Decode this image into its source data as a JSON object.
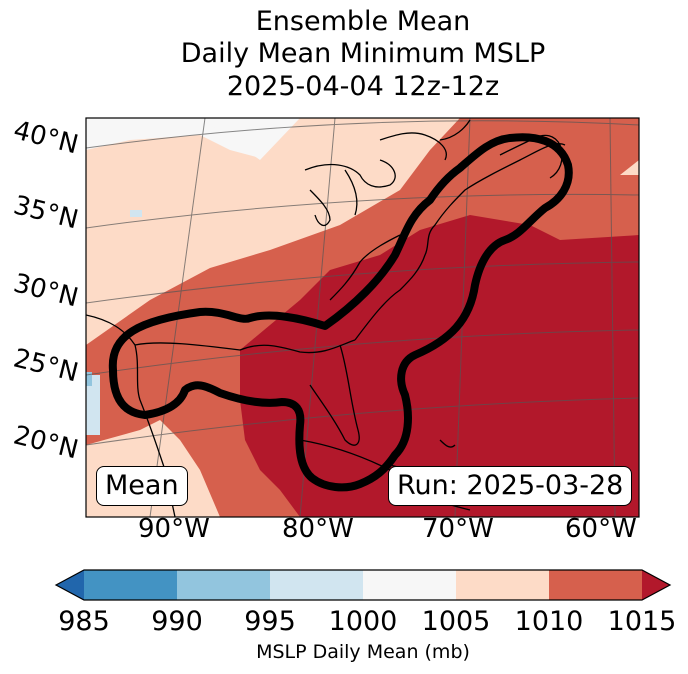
{
  "title": {
    "line1": "Ensemble Mean",
    "line2": "Daily Mean Minimum MSLP",
    "line3": "2025-04-04 12z-12z"
  },
  "map": {
    "lat_labels": [
      "40°N",
      "35°N",
      "30°N",
      "25°N",
      "20°N"
    ],
    "lon_labels": [
      "90°W",
      "80°W",
      "70°W",
      "60°W"
    ],
    "mean_box": "Mean",
    "run_box": "Run: 2025-03-28"
  },
  "colorbar": {
    "ticks": [
      "985",
      "990",
      "995",
      "1000",
      "1005",
      "1010",
      "1015"
    ],
    "label": "MSLP Daily Mean (mb)",
    "colors": [
      "#2166ac",
      "#4393c3",
      "#92c5de",
      "#d1e5f0",
      "#f7f7f7",
      "#fddbc7",
      "#d6604d",
      "#b2182b"
    ]
  },
  "colors": {
    "frame": "#000000",
    "contour": "#000000"
  }
}
